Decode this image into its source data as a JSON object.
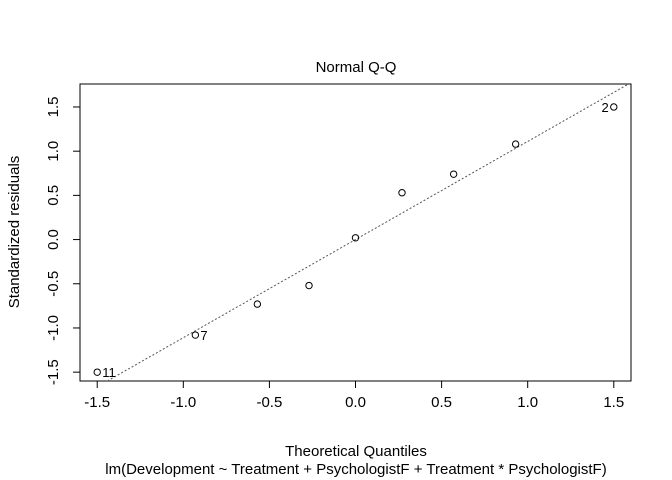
{
  "chart_data": {
    "type": "scatter",
    "title": "Normal Q-Q",
    "xlabel": "Theoretical Quantiles",
    "subtitle": "lm(Development ~ Treatment + PsychologistF + Treatment * PsychologistF)",
    "ylabel": "Standardized residuals",
    "xlim": [
      -1.6,
      1.6
    ],
    "ylim": [
      -1.6,
      1.76
    ],
    "x_ticks": [
      -1.5,
      -1.0,
      -0.5,
      0.0,
      0.5,
      1.0,
      1.5
    ],
    "x_tick_labels": [
      "-1.5",
      "-1.0",
      "-0.5",
      "0.0",
      "0.5",
      "1.0",
      "1.5"
    ],
    "y_ticks": [
      -1.5,
      -1.0,
      -0.5,
      0.0,
      0.5,
      1.0,
      1.5
    ],
    "y_tick_labels": [
      "-1.5",
      "-1.0",
      "-0.5",
      "0.0",
      "0.5",
      "1.0",
      "1.5"
    ],
    "grid": false,
    "points": [
      {
        "x": -1.5,
        "y": -1.5,
        "label": "11"
      },
      {
        "x": -0.93,
        "y": -1.08,
        "label": "7"
      },
      {
        "x": -0.57,
        "y": -0.73,
        "label": ""
      },
      {
        "x": -0.27,
        "y": -0.52,
        "label": ""
      },
      {
        "x": 0.0,
        "y": 0.02,
        "label": ""
      },
      {
        "x": 0.27,
        "y": 0.53,
        "label": ""
      },
      {
        "x": 0.57,
        "y": 0.74,
        "label": ""
      },
      {
        "x": 0.93,
        "y": 1.08,
        "label": ""
      },
      {
        "x": 1.5,
        "y": 1.5,
        "label": "2"
      }
    ],
    "reference_line": {
      "intercept": 0.0,
      "slope": 1.11
    },
    "colors": {
      "points": "#000000",
      "reference_line": "#555555",
      "axes": "#000000"
    }
  }
}
